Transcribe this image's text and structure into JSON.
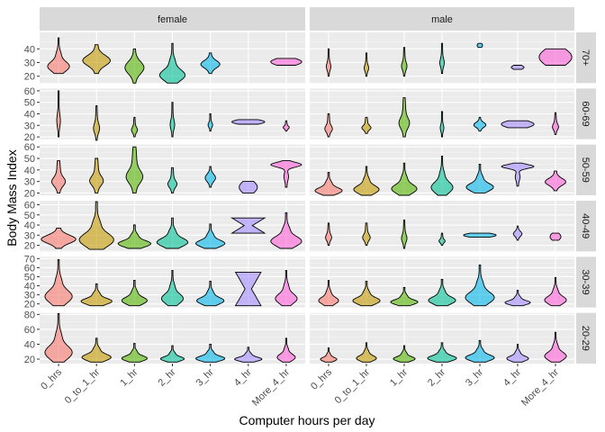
{
  "chart_data": {
    "type": "violin",
    "xlabel": "Computer hours per day",
    "ylabel": "Body Mass Index",
    "categories": [
      "0_hrs",
      "0_to_1_hr",
      "1_hr",
      "2_hr",
      "3_hr",
      "4_hr",
      "More_4_hr"
    ],
    "colors": [
      "#F8766D",
      "#C49A00",
      "#53B400",
      "#00C094",
      "#00B6EB",
      "#A58AFF",
      "#FB61D7"
    ],
    "columns": [
      "female",
      "male"
    ],
    "rows": [
      {
        "label": "70+",
        "ylim": [
          15,
          52
        ],
        "ticks": [
          20,
          30,
          40
        ],
        "female": [
          {
            "y": [
              22,
              48
            ],
            "w": 0.6,
            "shape": "wide-low"
          },
          {
            "y": [
              22,
              43
            ],
            "w": 0.8,
            "shape": "mid"
          },
          {
            "y": [
              15,
              40
            ],
            "w": 0.55,
            "shape": "mid"
          },
          {
            "y": [
              15,
              44
            ],
            "w": 0.7,
            "shape": "wide-low"
          },
          {
            "y": [
              22,
              37
            ],
            "w": 0.55,
            "shape": "mid"
          },
          null,
          {
            "y": [
              28,
              33
            ],
            "w": 0.85,
            "shape": "flat"
          }
        ],
        "male": [
          {
            "y": [
              20,
              40
            ],
            "w": 0.15,
            "shape": "thin"
          },
          {
            "y": [
              20,
              37
            ],
            "w": 0.15,
            "shape": "thin"
          },
          {
            "y": [
              20,
              41
            ],
            "w": 0.18,
            "shape": "thin"
          },
          {
            "y": [
              22,
              44
            ],
            "w": 0.15,
            "shape": "thin"
          },
          {
            "y": [
              41,
              44
            ],
            "w": 0.15,
            "shape": "flat"
          },
          {
            "y": [
              25,
              28
            ],
            "w": 0.35,
            "shape": "flat"
          },
          {
            "y": [
              28,
              40
            ],
            "w": 0.9,
            "shape": "flat"
          }
        ]
      },
      {
        "label": "60-69",
        "ylim": [
          18,
          62
        ],
        "ticks": [
          20,
          30,
          40,
          50,
          60
        ],
        "female": [
          {
            "y": [
              20,
              60
            ],
            "w": 0.12,
            "shape": "thin"
          },
          {
            "y": [
              17,
              47
            ],
            "w": 0.2,
            "shape": "thin"
          },
          {
            "y": [
              20,
              37
            ],
            "w": 0.2,
            "shape": "thin"
          },
          {
            "y": [
              20,
              50
            ],
            "w": 0.15,
            "shape": "thin"
          },
          {
            "y": [
              25,
              40
            ],
            "w": 0.15,
            "shape": "thin"
          },
          {
            "y": [
              31,
              35
            ],
            "w": 0.9,
            "shape": "flat"
          },
          {
            "y": [
              25,
              34
            ],
            "w": 0.2,
            "shape": "thin"
          }
        ],
        "male": [
          {
            "y": [
              20,
              40
            ],
            "w": 0.25,
            "shape": "thin"
          },
          {
            "y": [
              23,
              37
            ],
            "w": 0.3,
            "shape": "thin"
          },
          {
            "y": [
              20,
              54
            ],
            "w": 0.35,
            "shape": "thin"
          },
          {
            "y": [
              20,
              42
            ],
            "w": 0.12,
            "shape": "thin"
          },
          {
            "y": [
              25,
              37
            ],
            "w": 0.35,
            "shape": "mid"
          },
          {
            "y": [
              28,
              34
            ],
            "w": 0.9,
            "shape": "flat"
          },
          {
            "y": [
              22,
              41
            ],
            "w": 0.2,
            "shape": "thin"
          }
        ]
      },
      {
        "label": "50-59",
        "ylim": [
          18,
          62
        ],
        "ticks": [
          20,
          30,
          40,
          50,
          60
        ],
        "female": [
          {
            "y": [
              20,
              48
            ],
            "w": 0.45,
            "shape": "thin"
          },
          {
            "y": [
              20,
              50
            ],
            "w": 0.45,
            "shape": "thin"
          },
          {
            "y": [
              20,
              60
            ],
            "w": 0.55,
            "shape": "thin"
          },
          {
            "y": [
              20,
              42
            ],
            "w": 0.3,
            "shape": "thin"
          },
          {
            "y": [
              25,
              43
            ],
            "w": 0.3,
            "shape": "mid"
          },
          {
            "y": [
              20,
              30
            ],
            "w": 0.5,
            "shape": "flat"
          },
          {
            "y": [
              25,
              48
            ],
            "w": 0.85,
            "shape": "top"
          }
        ],
        "male": [
          {
            "y": [
              18,
              38
            ],
            "w": 0.75,
            "shape": "wide-low"
          },
          {
            "y": [
              18,
              43
            ],
            "w": 0.7,
            "shape": "wide-low"
          },
          {
            "y": [
              18,
              46
            ],
            "w": 0.7,
            "shape": "wide-low"
          },
          {
            "y": [
              18,
              52
            ],
            "w": 0.6,
            "shape": "wide-low"
          },
          {
            "y": [
              20,
              45
            ],
            "w": 0.75,
            "shape": "wide-low"
          },
          {
            "y": [
              26,
              46
            ],
            "w": 0.9,
            "shape": "top"
          },
          {
            "y": [
              22,
              39
            ],
            "w": 0.6,
            "shape": "mid"
          }
        ]
      },
      {
        "label": "40-49",
        "ylim": [
          14,
          64
        ],
        "ticks": [
          20,
          30,
          40,
          50,
          60
        ],
        "female": [
          {
            "y": [
              17,
              37
            ],
            "w": 0.95,
            "shape": "wide-mid"
          },
          {
            "y": [
              16,
              63
            ],
            "w": 0.95,
            "shape": "wide-low"
          },
          {
            "y": [
              17,
              40
            ],
            "w": 0.9,
            "shape": "wide-low"
          },
          {
            "y": [
              17,
              47
            ],
            "w": 0.85,
            "shape": "wide-low"
          },
          {
            "y": [
              17,
              41
            ],
            "w": 0.8,
            "shape": "wide-low"
          },
          {
            "y": [
              32,
              47
            ],
            "w": 0.9,
            "shape": "hourglass"
          },
          {
            "y": [
              17,
              52
            ],
            "w": 0.85,
            "shape": "wide-low"
          }
        ],
        "male": [
          {
            "y": [
              20,
              42
            ],
            "w": 0.2,
            "shape": "thin"
          },
          {
            "y": [
              20,
              42
            ],
            "w": 0.25,
            "shape": "thin"
          },
          {
            "y": [
              17,
              45
            ],
            "w": 0.18,
            "shape": "thin"
          },
          {
            "y": [
              20,
              32
            ],
            "w": 0.2,
            "shape": "thin"
          },
          {
            "y": [
              28,
              32
            ],
            "w": 0.9,
            "shape": "flat"
          },
          {
            "y": [
              25,
              39
            ],
            "w": 0.25,
            "shape": "mid"
          },
          {
            "y": [
              25,
              32
            ],
            "w": 0.3,
            "shape": "flat"
          }
        ]
      },
      {
        "label": "30-39",
        "ylim": [
          16,
          72
        ],
        "ticks": [
          20,
          30,
          40,
          50,
          60,
          70
        ],
        "female": [
          {
            "y": [
              18,
              69
            ],
            "w": 0.75,
            "shape": "wide-low"
          },
          {
            "y": [
              18,
              42
            ],
            "w": 0.85,
            "shape": "wide-low"
          },
          {
            "y": [
              18,
              46
            ],
            "w": 0.7,
            "shape": "wide-low"
          },
          {
            "y": [
              18,
              57
            ],
            "w": 0.6,
            "shape": "wide-low"
          },
          {
            "y": [
              18,
              45
            ],
            "w": 0.75,
            "shape": "wide-low"
          },
          {
            "y": [
              18,
              55
            ],
            "w": 0.7,
            "shape": "hourglass"
          },
          {
            "y": [
              18,
              57
            ],
            "w": 0.6,
            "shape": "wide-low"
          }
        ],
        "male": [
          {
            "y": [
              18,
              46
            ],
            "w": 0.55,
            "shape": "wide-low"
          },
          {
            "y": [
              18,
              45
            ],
            "w": 0.75,
            "shape": "wide-low"
          },
          {
            "y": [
              18,
              38
            ],
            "w": 0.75,
            "shape": "wide-low"
          },
          {
            "y": [
              18,
              47
            ],
            "w": 0.75,
            "shape": "wide-low"
          },
          {
            "y": [
              18,
              63
            ],
            "w": 0.8,
            "shape": "wide-low"
          },
          {
            "y": [
              18,
              35
            ],
            "w": 0.7,
            "shape": "wide-low"
          },
          {
            "y": [
              18,
              49
            ],
            "w": 0.6,
            "shape": "wide-low"
          }
        ]
      },
      {
        "label": "20-29",
        "ylim": [
          14,
          82
        ],
        "ticks": [
          20,
          40,
          60,
          80
        ],
        "female": [
          {
            "y": [
              16,
              81
            ],
            "w": 0.75,
            "shape": "wide-low"
          },
          {
            "y": [
              16,
              48
            ],
            "w": 0.8,
            "shape": "wide-low"
          },
          {
            "y": [
              16,
              41
            ],
            "w": 0.7,
            "shape": "wide-low"
          },
          {
            "y": [
              16,
              38
            ],
            "w": 0.65,
            "shape": "wide-low"
          },
          {
            "y": [
              16,
              40
            ],
            "w": 0.8,
            "shape": "wide-low"
          },
          {
            "y": [
              16,
              36
            ],
            "w": 0.75,
            "shape": "wide-low"
          },
          {
            "y": [
              16,
              48
            ],
            "w": 0.5,
            "shape": "wide-low"
          }
        ],
        "male": [
          {
            "y": [
              16,
              35
            ],
            "w": 0.45,
            "shape": "wide-low"
          },
          {
            "y": [
              16,
              42
            ],
            "w": 0.55,
            "shape": "wide-low"
          },
          {
            "y": [
              16,
              38
            ],
            "w": 0.6,
            "shape": "wide-low"
          },
          {
            "y": [
              16,
              42
            ],
            "w": 0.8,
            "shape": "wide-low"
          },
          {
            "y": [
              16,
              45
            ],
            "w": 0.8,
            "shape": "wide-low"
          },
          {
            "y": [
              16,
              40
            ],
            "w": 0.6,
            "shape": "wide-low"
          },
          {
            "y": [
              16,
              56
            ],
            "w": 0.6,
            "shape": "wide-low"
          }
        ]
      }
    ]
  }
}
